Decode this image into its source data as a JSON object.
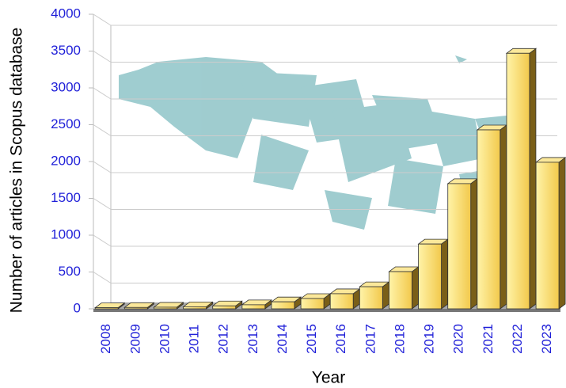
{
  "chart_data": {
    "type": "bar3d",
    "y_label": "Number of articles in Scopus database",
    "x_label": "Year",
    "categories": [
      "2008",
      "2009",
      "2010",
      "2011",
      "2012",
      "2013",
      "2014",
      "2015",
      "2016",
      "2017",
      "2018",
      "2019",
      "2020",
      "2021",
      "2022",
      "2023"
    ],
    "values": [
      15,
      18,
      22,
      28,
      40,
      55,
      95,
      140,
      205,
      300,
      505,
      880,
      1700,
      2430,
      3470,
      1990
    ],
    "color": "#f7d760",
    "ylim": [
      0,
      4000
    ],
    "yticks": [
      0,
      500,
      1000,
      1500,
      2000,
      2500,
      3000,
      3500,
      4000
    ],
    "grid": true
  }
}
